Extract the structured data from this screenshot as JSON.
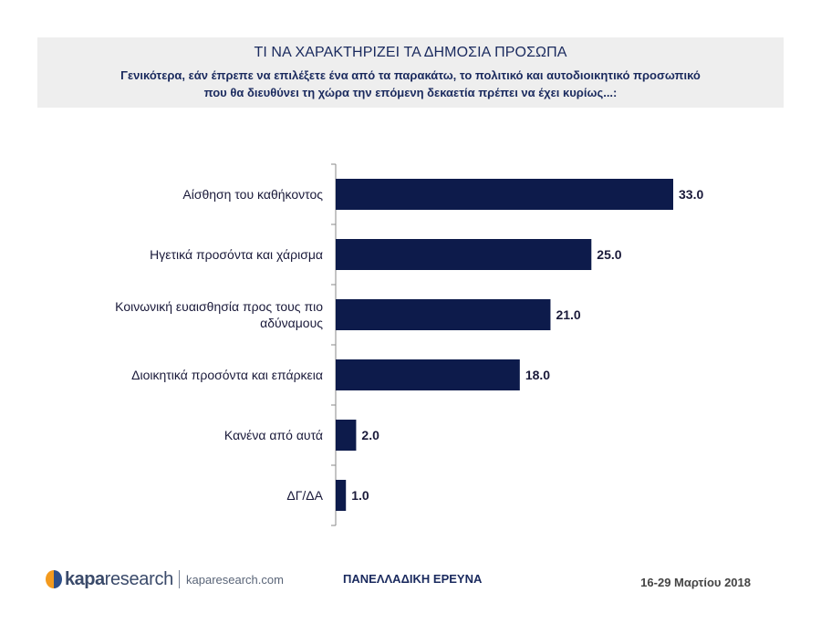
{
  "header": {
    "title": "ΤΙ  ΝΑ ΧΑΡΑΚΤΗΡΙΖΕΙ ΤΑ ΔΗΜΟΣΙΑ ΠΡΟΣΩΠΑ",
    "subtitle_line1": "Γενικότερα, εάν έπρεπε να επιλέξετε ένα από τα παρακάτω, το πολιτικό και αυτοδιοικητικό προσωπικό",
    "subtitle_line2": "που θα διευθύνει τη χώρα την επόμενη δεκαετία πρέπει να έχει κυρίως...:"
  },
  "chart_data": {
    "type": "bar",
    "orientation": "horizontal",
    "categories": [
      [
        "Αίσθηση του καθήκοντος"
      ],
      [
        "Ηγετικά προσόντα και χάρισμα"
      ],
      [
        "Κοινωνική ευαισθησία προς τους πιο",
        "αδύναμους"
      ],
      [
        "Διοικητικά προσόντα και επάρκεια"
      ],
      [
        "Κανένα από αυτά"
      ],
      [
        "ΔΓ/ΔΑ"
      ]
    ],
    "values": [
      33.0,
      25.0,
      21.0,
      18.0,
      2.0,
      1.0
    ],
    "value_labels": [
      "33.0",
      "25.0",
      "21.0",
      "18.0",
      "2.0",
      "1.0"
    ],
    "xlim": [
      0,
      40
    ],
    "grid": false,
    "bar_color": "#0d1b4b"
  },
  "footer": {
    "brand_bold": "kapa",
    "brand_light": "research",
    "url": "kaparesearch.com",
    "survey": "ΠΑΝΕΛΛΑΔΙΚΗ ΕΡΕΥΝΑ",
    "date": "16-29 Μαρτίου 2018"
  },
  "colors": {
    "header_bg": "#eeeeee",
    "title_text": "#1a2a5e",
    "logo_orange": "#f39a1e",
    "logo_blue": "#2d4f8a"
  }
}
